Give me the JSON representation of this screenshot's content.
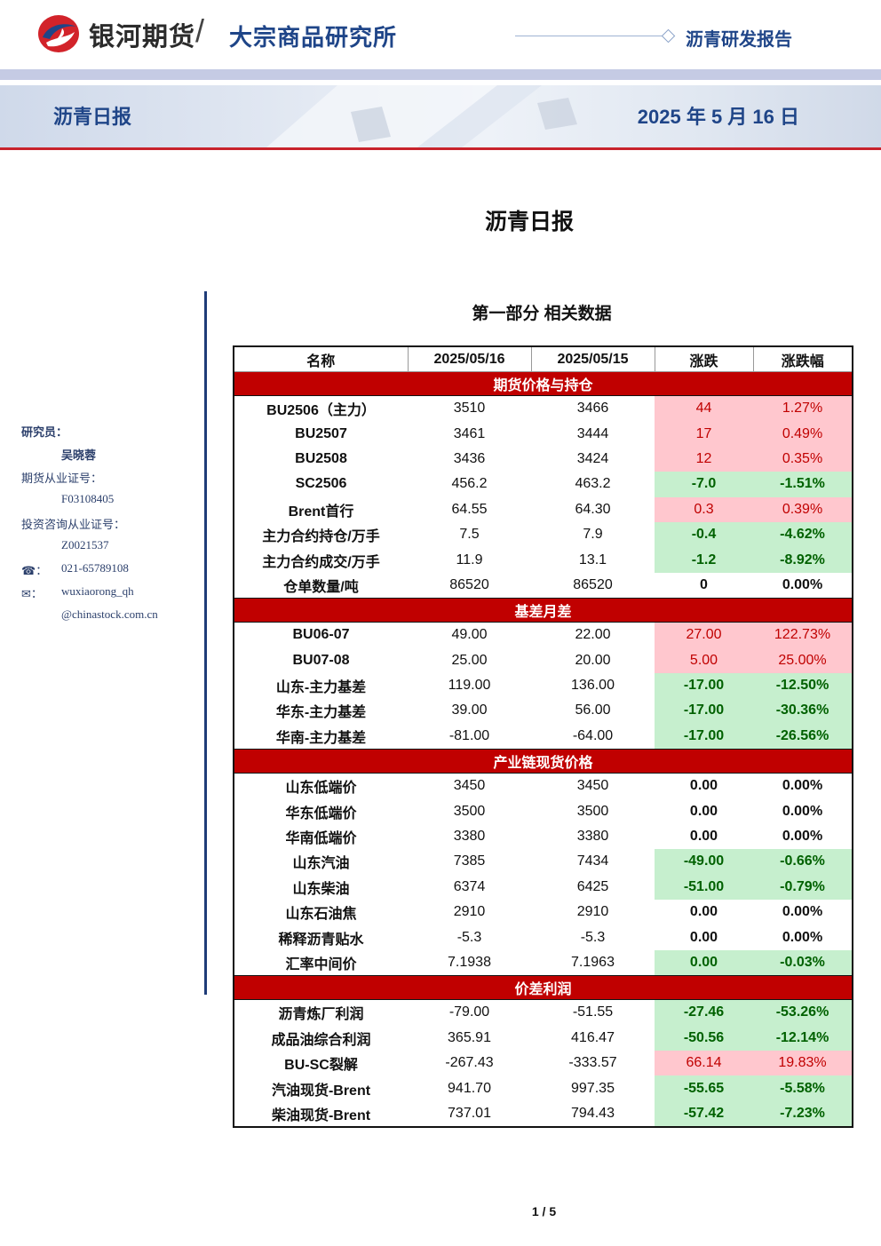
{
  "header": {
    "brand": "银河期货",
    "slash": "/",
    "institute": "大宗商品研究所",
    "report_type": "沥青研发报告"
  },
  "banner": {
    "title": "沥青日报",
    "date": "2025 年 5 月 16 日"
  },
  "doc_title": "沥青日报",
  "section_title": "第一部分 相关数据",
  "sidebar": {
    "researcher_label": "研究员：",
    "researcher_name": "吴晓蓉",
    "futures_cert_label": "期货从业证号：",
    "futures_cert": "F03108405",
    "consult_cert_label": "投资咨询从业证号：",
    "consult_cert": "Z0021537",
    "phone_icon": "☎：",
    "phone": "021-65789108",
    "email_icon": "✉：",
    "email_1": "wuxiaorong_qh",
    "email_2": "@chinastock.com.cn"
  },
  "table": {
    "headers": [
      "名称",
      "2025/05/16",
      "2025/05/15",
      "涨跌",
      "涨跌幅"
    ],
    "groups": [
      {
        "title": "期货价格与持仓",
        "rows": [
          {
            "name": "BU2506（主力）",
            "d1": "3510",
            "d2": "3466",
            "chg": "44",
            "pct": "1.27%",
            "dir": "up"
          },
          {
            "name": "BU2507",
            "d1": "3461",
            "d2": "3444",
            "chg": "17",
            "pct": "0.49%",
            "dir": "up"
          },
          {
            "name": "BU2508",
            "d1": "3436",
            "d2": "3424",
            "chg": "12",
            "pct": "0.35%",
            "dir": "up"
          },
          {
            "name": "SC2506",
            "d1": "456.2",
            "d2": "463.2",
            "chg": "-7.0",
            "pct": "-1.51%",
            "dir": "down"
          },
          {
            "name": "Brent首行",
            "d1": "64.55",
            "d2": "64.30",
            "chg": "0.3",
            "pct": "0.39%",
            "dir": "up"
          },
          {
            "name": "主力合约持仓/万手",
            "d1": "7.5",
            "d2": "7.9",
            "chg": "-0.4",
            "pct": "-4.62%",
            "dir": "down"
          },
          {
            "name": "主力合约成交/万手",
            "d1": "11.9",
            "d2": "13.1",
            "chg": "-1.2",
            "pct": "-8.92%",
            "dir": "down"
          },
          {
            "name": "仓单数量/吨",
            "d1": "86520",
            "d2": "86520",
            "chg": "0",
            "pct": "0.00%",
            "dir": "flat"
          }
        ]
      },
      {
        "title": "基差月差",
        "rows": [
          {
            "name": "BU06-07",
            "d1": "49.00",
            "d2": "22.00",
            "chg": "27.00",
            "pct": "122.73%",
            "dir": "up"
          },
          {
            "name": "BU07-08",
            "d1": "25.00",
            "d2": "20.00",
            "chg": "5.00",
            "pct": "25.00%",
            "dir": "up"
          },
          {
            "name": "山东-主力基差",
            "d1": "119.00",
            "d2": "136.00",
            "chg": "-17.00",
            "pct": "-12.50%",
            "dir": "down"
          },
          {
            "name": "华东-主力基差",
            "d1": "39.00",
            "d2": "56.00",
            "chg": "-17.00",
            "pct": "-30.36%",
            "dir": "down"
          },
          {
            "name": "华南-主力基差",
            "d1": "-81.00",
            "d2": "-64.00",
            "chg": "-17.00",
            "pct": "-26.56%",
            "dir": "down"
          }
        ]
      },
      {
        "title": "产业链现货价格",
        "rows": [
          {
            "name": "山东低端价",
            "d1": "3450",
            "d2": "3450",
            "chg": "0.00",
            "pct": "0.00%",
            "dir": "flat"
          },
          {
            "name": "华东低端价",
            "d1": "3500",
            "d2": "3500",
            "chg": "0.00",
            "pct": "0.00%",
            "dir": "flat"
          },
          {
            "name": "华南低端价",
            "d1": "3380",
            "d2": "3380",
            "chg": "0.00",
            "pct": "0.00%",
            "dir": "flat"
          },
          {
            "name": "山东汽油",
            "d1": "7385",
            "d2": "7434",
            "chg": "-49.00",
            "pct": "-0.66%",
            "dir": "down"
          },
          {
            "name": "山东柴油",
            "d1": "6374",
            "d2": "6425",
            "chg": "-51.00",
            "pct": "-0.79%",
            "dir": "down"
          },
          {
            "name": "山东石油焦",
            "d1": "2910",
            "d2": "2910",
            "chg": "0.00",
            "pct": "0.00%",
            "dir": "flat"
          },
          {
            "name": "稀释沥青贴水",
            "d1": "-5.3",
            "d2": "-5.3",
            "chg": "0.00",
            "pct": "0.00%",
            "dir": "flat"
          },
          {
            "name": "汇率中间价",
            "d1": "7.1938",
            "d2": "7.1963",
            "chg": "0.00",
            "pct": "-0.03%",
            "dir": "down"
          }
        ]
      },
      {
        "title": "价差利润",
        "rows": [
          {
            "name": "沥青炼厂利润",
            "d1": "-79.00",
            "d2": "-51.55",
            "chg": "-27.46",
            "pct": "-53.26%",
            "dir": "down"
          },
          {
            "name": "成品油综合利润",
            "d1": "365.91",
            "d2": "416.47",
            "chg": "-50.56",
            "pct": "-12.14%",
            "dir": "down"
          },
          {
            "name": "BU-SC裂解",
            "d1": "-267.43",
            "d2": "-333.57",
            "chg": "66.14",
            "pct": "19.83%",
            "dir": "up"
          },
          {
            "name": "汽油现货-Brent",
            "d1": "941.70",
            "d2": "997.35",
            "chg": "-55.65",
            "pct": "-5.58%",
            "dir": "down"
          },
          {
            "name": "柴油现货-Brent",
            "d1": "737.01",
            "d2": "794.43",
            "chg": "-57.42",
            "pct": "-7.23%",
            "dir": "down"
          }
        ]
      }
    ]
  },
  "page": "1 / 5",
  "colors": {
    "brand_blue": "#1f4588",
    "group_red": "#c00000",
    "up_bg": "#ffc7ce",
    "up_text": "#c00000",
    "down_bg": "#c6efce",
    "down_text": "#006100"
  }
}
